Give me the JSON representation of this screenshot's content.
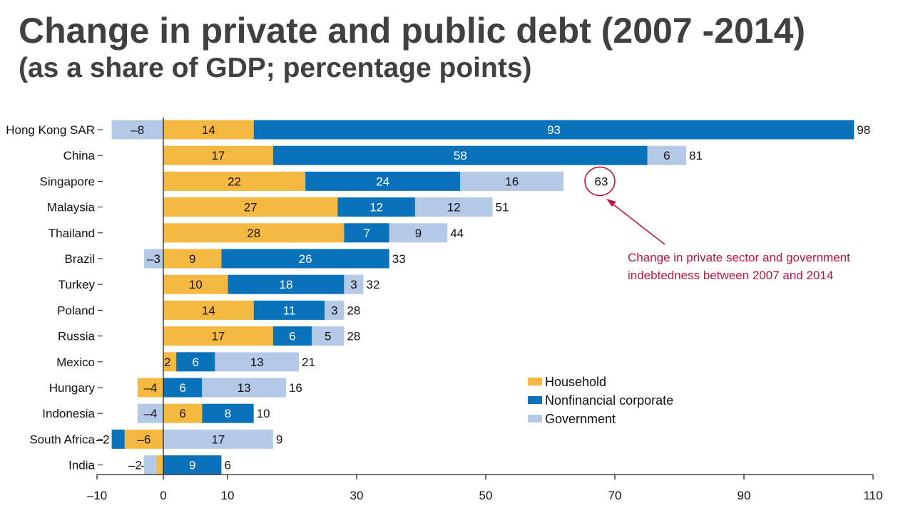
{
  "title": "Change in private and public debt (2007 -2014)",
  "subtitle": "(as a share of GDP; percentage points)",
  "colors": {
    "household": "#f5b942",
    "corporate": "#0a72bb",
    "government": "#b4c9e6",
    "annotation": "#c0143c",
    "text": "#111111"
  },
  "chart_data": {
    "type": "bar",
    "orientation": "horizontal",
    "stacked": true,
    "xlim": [
      -10,
      110
    ],
    "xticks": [
      -10,
      0,
      10,
      30,
      50,
      70,
      90,
      110
    ],
    "xtick_labels": [
      "–10",
      "0",
      "10",
      "30",
      "50",
      "70",
      "90",
      "110"
    ],
    "categories": [
      "Hong Kong SAR",
      "China",
      "Singapore",
      "Malaysia",
      "Thailand",
      "Brazil",
      "Turkey",
      "Poland",
      "Russia",
      "Mexico",
      "Hungary",
      "Indonesia",
      "South Africa",
      "India"
    ],
    "series": [
      {
        "name": "Household",
        "values": [
          14,
          17,
          22,
          27,
          28,
          9,
          10,
          14,
          17,
          2,
          -4,
          6,
          -6,
          -1
        ],
        "labels": [
          "14",
          "17",
          "22",
          "27",
          "28",
          "9",
          "10",
          "14",
          "17",
          "2",
          "–4",
          "6",
          "–6",
          "–1"
        ]
      },
      {
        "name": "Nonfinancial corporate",
        "values": [
          93,
          58,
          24,
          12,
          7,
          26,
          18,
          11,
          6,
          6,
          6,
          8,
          -2,
          9
        ],
        "labels": [
          "93",
          "58",
          "24",
          "12",
          "7",
          "26",
          "18",
          "11",
          "6",
          "6",
          "6",
          "8",
          "–2",
          "9"
        ]
      },
      {
        "name": "Government",
        "values": [
          -8,
          6,
          16,
          12,
          9,
          -3,
          3,
          3,
          5,
          13,
          13,
          -4,
          17,
          -2
        ],
        "labels": [
          "–8",
          "6",
          "16",
          "12",
          "9",
          "–3",
          "3",
          "3",
          "5",
          "13",
          "13",
          "–4",
          "17",
          "–2"
        ]
      }
    ],
    "totals": [
      98,
      81,
      63,
      51,
      44,
      33,
      32,
      28,
      28,
      21,
      16,
      10,
      9,
      6
    ],
    "highlight_total_index": 2,
    "annotation": {
      "line1": "Change in private sector and government",
      "line2": "indebtedness between 2007 and 2014"
    },
    "legend_position": "bottom-right"
  }
}
